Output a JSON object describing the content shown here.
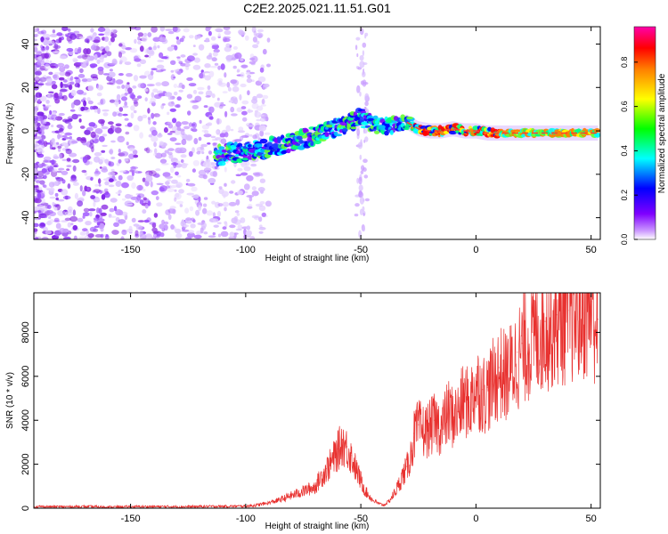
{
  "chart_data": [
    {
      "type": "heatmap",
      "title": "C2E2.2025.021.11.51.G01",
      "xlabel": "Height of straight line (km)",
      "ylabel": "Frequency (Hz)",
      "xlim": [
        -192,
        54
      ],
      "ylim": [
        -50,
        48
      ],
      "xticks": [
        -150,
        -100,
        -50,
        0,
        50
      ],
      "yticks": [
        -40,
        -20,
        0,
        20,
        40
      ],
      "grid": false,
      "colorbar": {
        "label": "Normalized spectral amplitude",
        "range": [
          0,
          0.96
        ],
        "ticks": [
          0.0,
          0.2,
          0.4,
          0.6,
          0.8
        ],
        "colors": [
          "#ffffff",
          "#cc99ff",
          "#7f00ff",
          "#0000ff",
          "#00ffff",
          "#00ff00",
          "#ffff00",
          "#ff7f00",
          "#ff0000",
          "#ff00aa"
        ]
      },
      "ridge": {
        "x": [
          -113,
          -100,
          -90,
          -80,
          -70,
          -60,
          -55,
          -50,
          -45,
          -40,
          -35,
          -30,
          -25,
          -20,
          -15,
          -10,
          -5,
          0,
          5,
          10,
          20,
          30,
          40,
          50,
          53
        ],
        "y": [
          -11,
          -10,
          -8,
          -5,
          -2,
          2,
          4,
          6,
          3,
          2,
          3,
          4,
          1,
          0,
          0,
          1,
          0,
          0,
          -1,
          -1,
          -1,
          -1,
          -1,
          -1,
          -1
        ]
      }
    },
    {
      "type": "line",
      "xlabel": "Height of straight line (km)",
      "ylabel": "SNR (10 * v/v)",
      "xlim": [
        -192,
        54
      ],
      "ylim": [
        0,
        9800
      ],
      "xticks": [
        -150,
        -100,
        -50,
        0,
        50
      ],
      "yticks": [
        0,
        2000,
        4000,
        6000,
        8000
      ],
      "grid": false,
      "color": "#e8312f",
      "series": [
        {
          "x": [
            -192,
            -180,
            -170,
            -160,
            -150,
            -140,
            -130,
            -120,
            -110,
            -100,
            -95,
            -90,
            -85,
            -80,
            -75,
            -70,
            -67,
            -65,
            -62,
            -60,
            -58,
            -56,
            -54,
            -52,
            -50,
            -48,
            -45,
            -42,
            -40,
            -38,
            -36,
            -34,
            -32,
            -30,
            -28,
            -27,
            -25,
            -22,
            -20,
            -18,
            -15,
            -12,
            -10,
            -8,
            -5,
            -3,
            0,
            3,
            5,
            8,
            10,
            13,
            15,
            18,
            20,
            25,
            30,
            35,
            40,
            45,
            50,
            53
          ],
          "values": [
            80,
            70,
            80,
            60,
            70,
            80,
            70,
            80,
            90,
            100,
            150,
            250,
            400,
            600,
            800,
            1000,
            1500,
            1800,
            2300,
            2700,
            3100,
            2800,
            2400,
            1800,
            1300,
            800,
            400,
            200,
            150,
            300,
            600,
            1000,
            1500,
            1900,
            2600,
            3400,
            3800,
            3600,
            3800,
            4000,
            3800,
            4500,
            4300,
            4400,
            5200,
            4800,
            5800,
            5400,
            5500,
            6000,
            6400,
            6200,
            6500,
            7100,
            7500,
            8000,
            8500,
            8800,
            9000,
            9200,
            9400,
            8600
          ]
        }
      ]
    }
  ]
}
